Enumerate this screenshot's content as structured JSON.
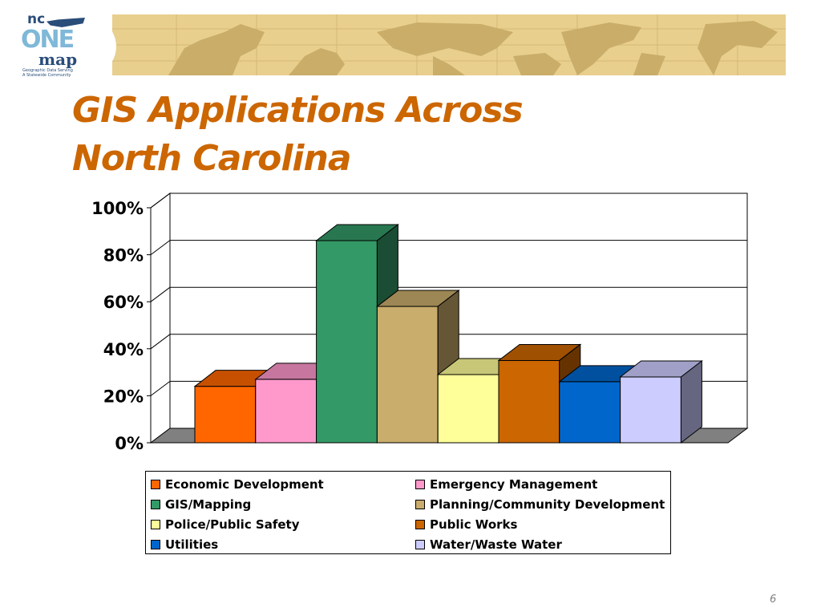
{
  "logo": {
    "line1": "nc",
    "line2": "ONE",
    "line3": "map",
    "tagline1": "Geographic Data Serving",
    "tagline2": "A Statewide Community"
  },
  "slide": {
    "title_line1": "GIS Applications Across",
    "title_line2": "North Carolina",
    "page_number": "6"
  },
  "colors": {
    "title": "#cc6600",
    "header_map": "#e8cf8e"
  },
  "chart_data": {
    "type": "bar",
    "variant": "3d-column",
    "categories": [
      "Economic Development",
      "Emergency Management",
      "GIS/Mapping",
      "Planning/Community Development",
      "Police/Public Safety",
      "Public Works",
      "Utilities",
      "Water/Waste Water"
    ],
    "values": [
      24,
      27,
      86,
      58,
      29,
      35,
      26,
      28
    ],
    "colors": [
      "#ff6600",
      "#ff99cc",
      "#339966",
      "#c9ad6c",
      "#ffff99",
      "#cc6600",
      "#0066cc",
      "#ccccff"
    ],
    "yticks": [
      "0%",
      "20%",
      "40%",
      "60%",
      "80%",
      "100%"
    ],
    "ylim": [
      0,
      100
    ],
    "grid": true,
    "legend_position": "bottom"
  }
}
